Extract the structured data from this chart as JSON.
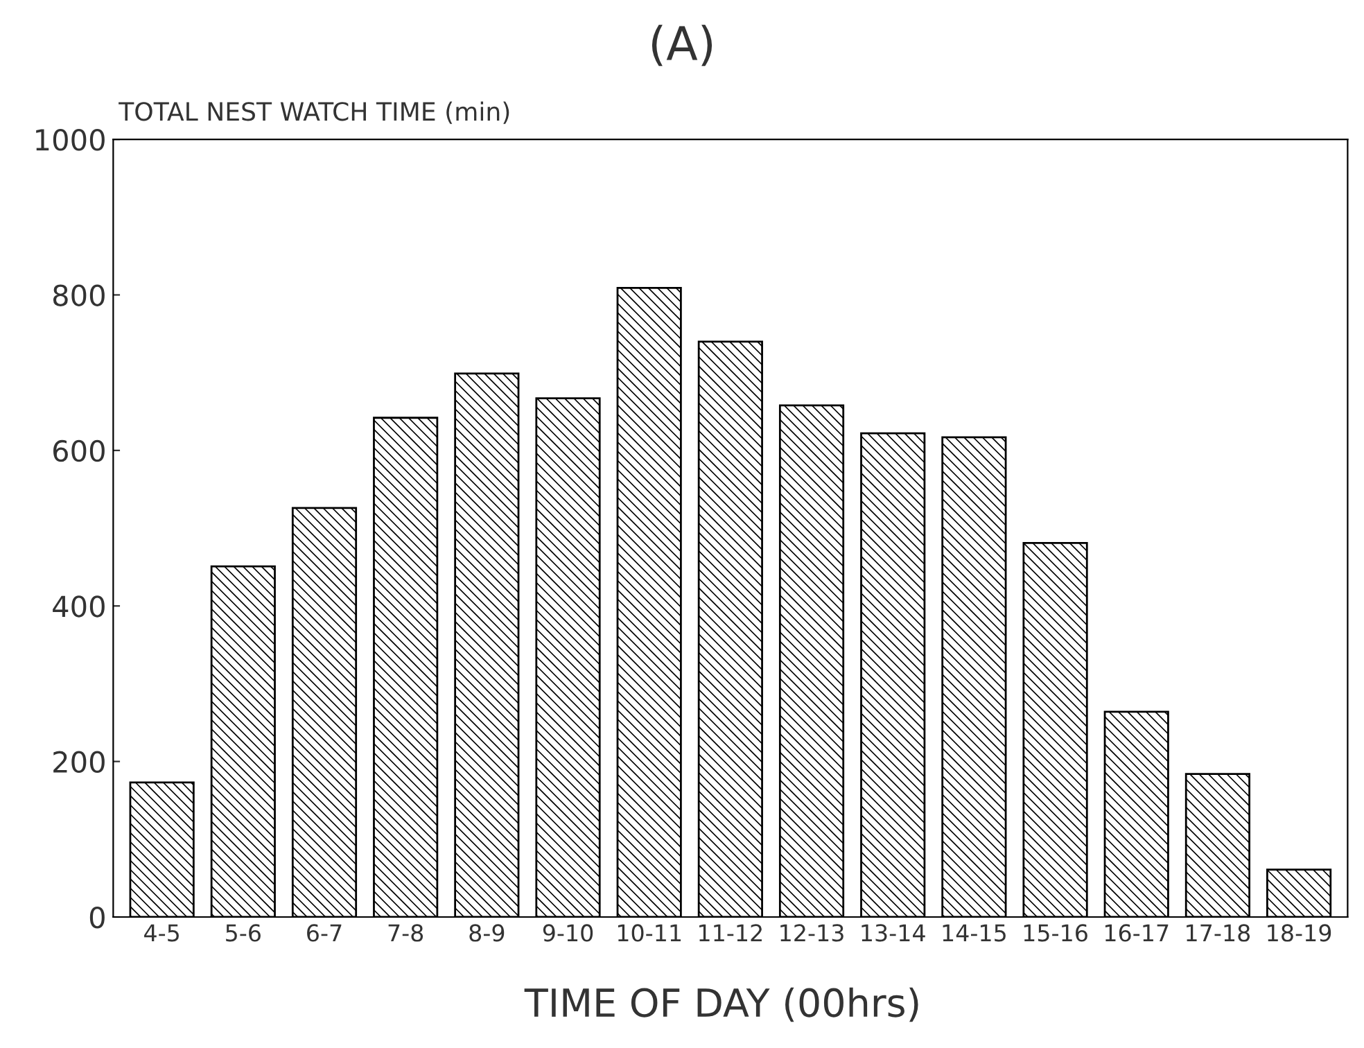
{
  "chart_data": {
    "type": "bar",
    "title": "(A)",
    "ylabel": "TOTAL NEST WATCH TIME (min)",
    "xlabel": "TIME OF DAY (00hrs)",
    "categories": [
      "4-5",
      "5-6",
      "6-7",
      "7-8",
      "8-9",
      "9-10",
      "10-11",
      "11-12",
      "12-13",
      "13-14",
      "14-15",
      "15-16",
      "16-17",
      "17-18",
      "18-19"
    ],
    "values": [
      173,
      451,
      526,
      642,
      699,
      667,
      809,
      740,
      658,
      622,
      617,
      481,
      264,
      184,
      61
    ],
    "color": "#000000",
    "ylim": [
      0,
      1000
    ],
    "yticks": [
      0,
      200,
      400,
      600,
      800,
      1000
    ],
    "grid": false,
    "legend": false
  }
}
